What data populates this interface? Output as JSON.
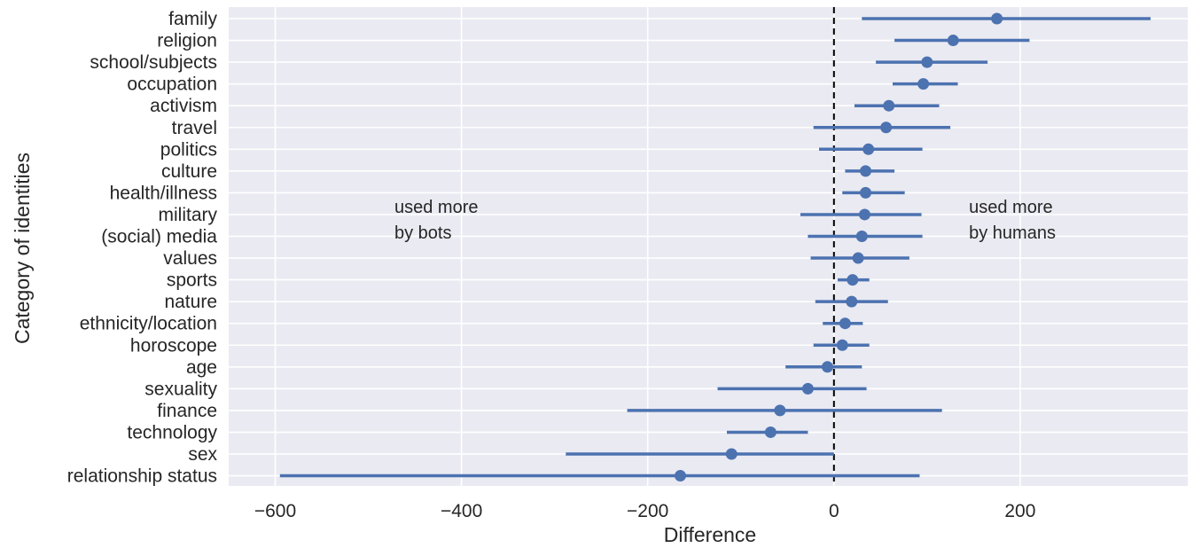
{
  "chart_data": {
    "type": "scatter",
    "subtype": "point-range",
    "title": "",
    "xlabel": "Difference",
    "ylabel": "Category of identities",
    "xlim": [
      -650,
      380
    ],
    "x_ticks": [
      -600,
      -400,
      -200,
      0,
      200
    ],
    "x_tick_labels": [
      "−600",
      "−400",
      "−200",
      "0",
      "200"
    ],
    "reference_line": {
      "x": 0,
      "style": "dashed",
      "color": "#000000"
    },
    "background_color": "#eaeaf2",
    "grid": true,
    "series_color": "#4c72b0",
    "annotations": [
      {
        "lines": [
          "used more",
          "by bots"
        ],
        "anchor_x": -472,
        "anchor_category": "military"
      },
      {
        "lines": [
          "used more",
          "by humans"
        ],
        "anchor_x": 145,
        "anchor_category": "military"
      }
    ],
    "points": [
      {
        "category": "family",
        "value": 175,
        "ci_low": 30,
        "ci_high": 340
      },
      {
        "category": "religion",
        "value": 128,
        "ci_low": 65,
        "ci_high": 210
      },
      {
        "category": "school/subjects",
        "value": 100,
        "ci_low": 45,
        "ci_high": 165
      },
      {
        "category": "occupation",
        "value": 96,
        "ci_low": 63,
        "ci_high": 133
      },
      {
        "category": "activism",
        "value": 59,
        "ci_low": 22,
        "ci_high": 113
      },
      {
        "category": "travel",
        "value": 56,
        "ci_low": -22,
        "ci_high": 125
      },
      {
        "category": "politics",
        "value": 37,
        "ci_low": -16,
        "ci_high": 95
      },
      {
        "category": "culture",
        "value": 34,
        "ci_low": 12,
        "ci_high": 65
      },
      {
        "category": "health/illness",
        "value": 34,
        "ci_low": 9,
        "ci_high": 76
      },
      {
        "category": "military",
        "value": 33,
        "ci_low": -36,
        "ci_high": 94
      },
      {
        "category": "(social) media",
        "value": 30,
        "ci_low": -28,
        "ci_high": 95
      },
      {
        "category": "values",
        "value": 26,
        "ci_low": -25,
        "ci_high": 81
      },
      {
        "category": "sports",
        "value": 20,
        "ci_low": 4,
        "ci_high": 38
      },
      {
        "category": "nature",
        "value": 19,
        "ci_low": -20,
        "ci_high": 58
      },
      {
        "category": "ethnicity/location",
        "value": 12,
        "ci_low": -12,
        "ci_high": 31
      },
      {
        "category": "horoscope",
        "value": 9,
        "ci_low": -22,
        "ci_high": 38
      },
      {
        "category": "age",
        "value": -7,
        "ci_low": -52,
        "ci_high": 30
      },
      {
        "category": "sexuality",
        "value": -28,
        "ci_low": -125,
        "ci_high": 35
      },
      {
        "category": "finance",
        "value": -58,
        "ci_low": -222,
        "ci_high": 116
      },
      {
        "category": "technology",
        "value": -68,
        "ci_low": -115,
        "ci_high": -28
      },
      {
        "category": "sex",
        "value": -110,
        "ci_low": -288,
        "ci_high": 0
      },
      {
        "category": "relationship status",
        "value": -165,
        "ci_low": -595,
        "ci_high": 92
      }
    ]
  }
}
